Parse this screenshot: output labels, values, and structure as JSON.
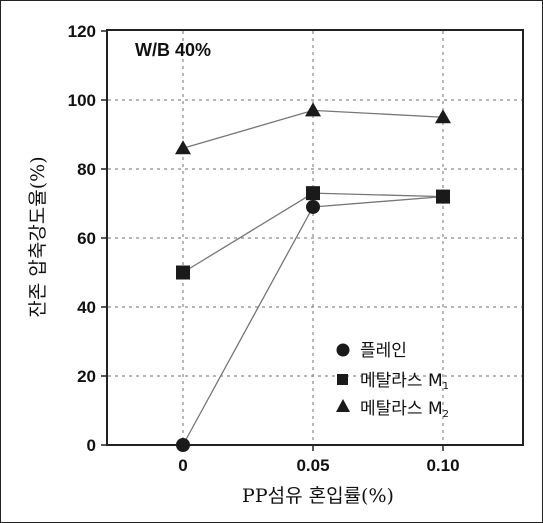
{
  "chart_data": {
    "type": "line",
    "title": "",
    "annotation": "W/B 40%",
    "xlabel": "PP섬유 혼입률(%)",
    "ylabel": "잔존 압축강도율(%)",
    "categories": [
      "0",
      "0.05",
      "0.10"
    ],
    "ylim": [
      0,
      120
    ],
    "yticks": [
      "0",
      "20",
      "40",
      "60",
      "80",
      "100",
      "120"
    ],
    "grid": true,
    "legend_position": "bottom-right",
    "series": [
      {
        "name": "플레인",
        "marker": "circle",
        "values": [
          0,
          69,
          72
        ]
      },
      {
        "name": "메탈라스 M",
        "subscript": "1",
        "marker": "square",
        "values": [
          50,
          73,
          72
        ]
      },
      {
        "name": "메탈라스 M",
        "subscript": "2",
        "marker": "triangle",
        "values": [
          86,
          97,
          95
        ]
      }
    ],
    "colors": {
      "marker": "#1a1a1a",
      "line": "#777777",
      "grid": "#8a8a8a"
    }
  }
}
